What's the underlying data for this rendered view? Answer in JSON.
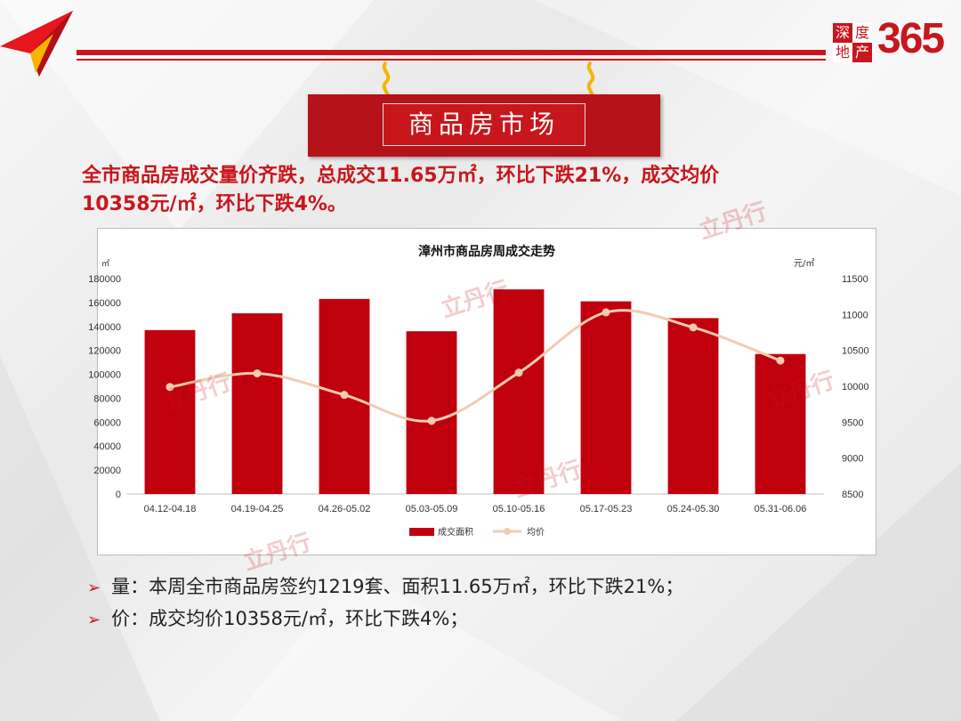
{
  "header": {
    "logo": {
      "box1": "深",
      "box2": "度",
      "box3": "地",
      "box4": "产",
      "number": "365"
    },
    "banner_title": "商品房市场",
    "accent_color": "#c8161d"
  },
  "headline": {
    "line1": "全市商品房成交量价齐跌，总成交11.65万㎡，环比下跌21%，成交均价",
    "line2": "10358元/㎡，环比下跌4%。"
  },
  "watermark": "立丹行",
  "chart_data": {
    "type": "bar",
    "title": "漳州市商品房周成交走势",
    "y_left_unit": "㎡",
    "y_right_unit": "元/㎡",
    "categories": [
      "04.12-04.18",
      "04.19-04.25",
      "04.26-05.02",
      "05.03-05.09",
      "05.10-05.16",
      "05.17-05.23",
      "05.24-05.30",
      "05.31-06.06"
    ],
    "series": [
      {
        "name": "成交面积",
        "kind": "bar",
        "axis": "left",
        "color": "#c0000d",
        "values": [
          137000,
          151000,
          163000,
          136000,
          171000,
          161000,
          147000,
          117000
        ]
      },
      {
        "name": "均价",
        "kind": "line",
        "axis": "right",
        "color": "#f3cbb3",
        "values": [
          9990,
          10180,
          9880,
          9520,
          10190,
          11030,
          10820,
          10358
        ]
      }
    ],
    "ylim_left": [
      0,
      180000
    ],
    "yticks_left": [
      "180000",
      "160000",
      "140000",
      "120000",
      "100000",
      "80000",
      "60000",
      "40000",
      "20000",
      "0"
    ],
    "ylim_right": [
      8500,
      11500
    ],
    "yticks_right": [
      "11500",
      "11000",
      "10500",
      "10000",
      "9500",
      "9000",
      "8500"
    ],
    "legend_position": "bottom",
    "grid": false
  },
  "bullets": [
    "量：本周全市商品房签约1219套、面积11.65万㎡，环比下跌21%；",
    "价：成交均价10358元/㎡，环比下跌4%；"
  ]
}
